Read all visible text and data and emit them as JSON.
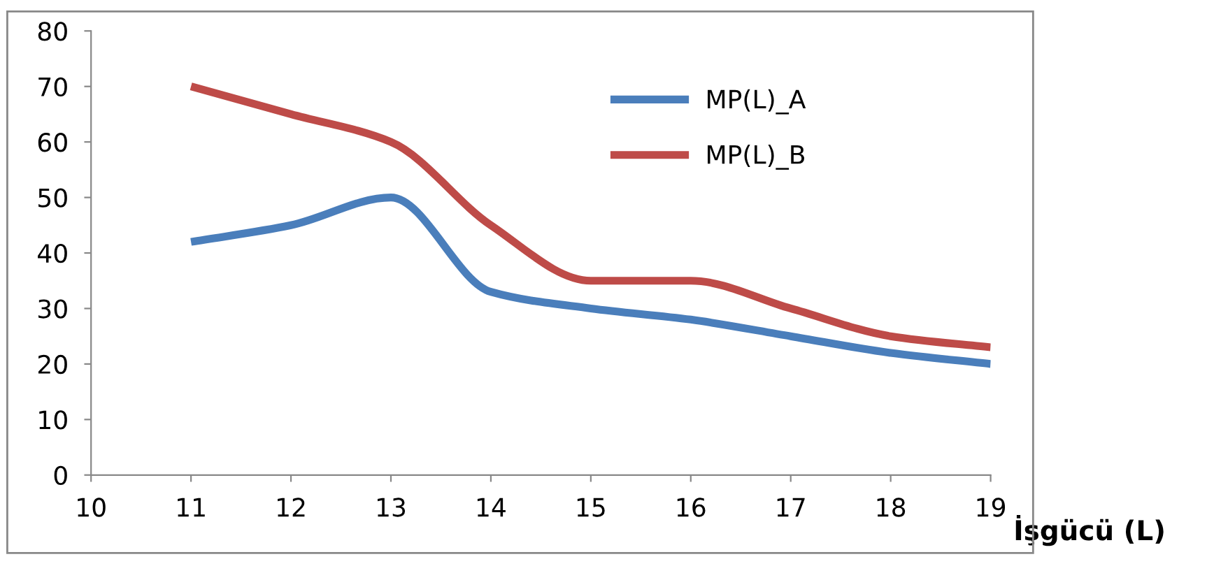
{
  "chart_data": {
    "type": "line",
    "xlabel": "İşgücü (L)",
    "x": [
      11,
      12,
      13,
      14,
      15,
      16,
      17,
      18,
      19
    ],
    "series": [
      {
        "name": "MP(L)_A",
        "color": "#4a7ebb",
        "values": [
          42,
          45,
          50,
          33,
          30,
          28,
          25,
          22,
          20
        ]
      },
      {
        "name": "MP(L)_B",
        "color": "#be4b48",
        "values": [
          70,
          65,
          60,
          45,
          35,
          35,
          30,
          25,
          23
        ]
      }
    ],
    "xlim": [
      10,
      19
    ],
    "xticks": [
      10,
      11,
      12,
      13,
      14,
      15,
      16,
      17,
      18,
      19
    ],
    "ylim": [
      0,
      80
    ],
    "yticks": [
      0,
      10,
      20,
      30,
      40,
      50,
      60,
      70,
      80
    ],
    "grid": false,
    "legend": "top right",
    "marker": "none",
    "line_style": "solid"
  }
}
